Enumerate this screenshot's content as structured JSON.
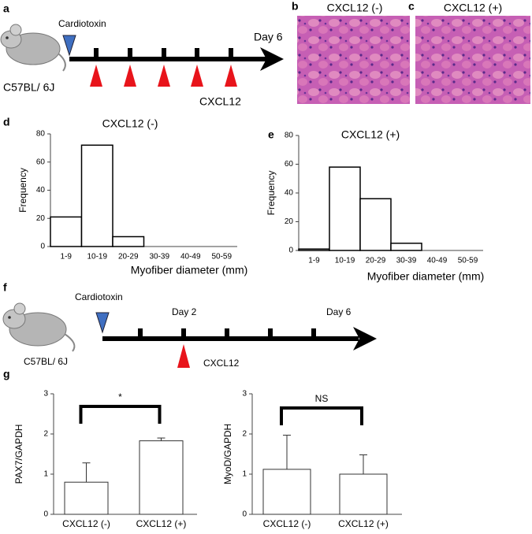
{
  "panels": {
    "a": {
      "label": "a",
      "treatment": "Cardiotoxin",
      "end_day": "Day 6",
      "strain": "C57BL/ 6J",
      "injection": "CXCL12"
    },
    "b": {
      "label": "b",
      "title": "CXCL12 (-)"
    },
    "c": {
      "label": "c",
      "title": "CXCL12 (+)"
    },
    "d": {
      "label": "d"
    },
    "e": {
      "label": "e"
    },
    "f": {
      "label": "f",
      "treatment": "Cardiotoxin",
      "injection_day": "Day 2",
      "end_day": "Day 6",
      "strain": "C57BL/  6J",
      "injection": "CXCL12"
    },
    "g": {
      "label": "g"
    }
  },
  "chart_data": [
    {
      "type": "histogram",
      "title": "CXCL12 (-)",
      "x_label": "Myofiber diameter  (mm)",
      "y_label": "Frequency",
      "categories": [
        "1-9",
        "10-19",
        "20-29",
        "30-39",
        "40-49",
        "50-59"
      ],
      "values": [
        21,
        72,
        7,
        0,
        0,
        0
      ],
      "color": "#ffffff",
      "ylim": [
        0,
        80
      ],
      "yticks": [
        0,
        20,
        40,
        60,
        80
      ]
    },
    {
      "type": "histogram",
      "title": "CXCL12 (+)",
      "x_label": "Myofiber diameter  (mm)",
      "y_label": "Frequency",
      "categories": [
        "1-9",
        "10-19",
        "20-29",
        "30-39",
        "40-49",
        "50-59"
      ],
      "values": [
        1,
        58,
        36,
        5,
        0,
        0
      ],
      "color": "#ffffff",
      "ylim": [
        0,
        80
      ],
      "yticks": [
        0,
        20,
        40,
        60,
        80
      ]
    },
    {
      "type": "bar",
      "y_label": "PAX7/GAPDH",
      "significance": "*",
      "categories": [
        "CXCL12 (-)",
        "CXCL12 (+)"
      ],
      "values": [
        0.8,
        1.83
      ],
      "errors": [
        0.48,
        0.07
      ],
      "color": "#ffffff",
      "ylim": [
        0,
        3
      ],
      "yticks": [
        0,
        1,
        2,
        3
      ]
    },
    {
      "type": "bar",
      "y_label": "MyoD/GAPDH",
      "significance": "NS",
      "categories": [
        "CXCL12 (-)",
        "CXCL12 (+)"
      ],
      "values": [
        1.12,
        1.0
      ],
      "errors": [
        0.85,
        0.48
      ],
      "color": "#ffffff",
      "ylim": [
        0,
        3
      ],
      "yticks": [
        0,
        1,
        2,
        3
      ]
    }
  ]
}
